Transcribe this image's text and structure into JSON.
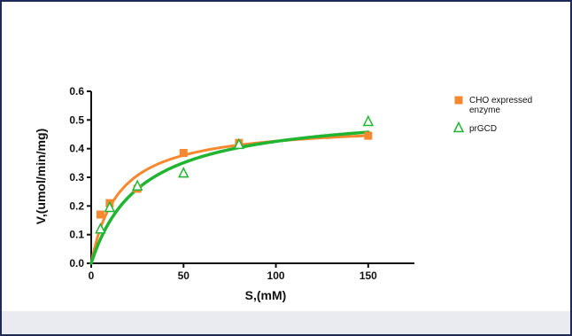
{
  "colors": {
    "frame_border": "#1d2a5a",
    "axis": "#111111",
    "orange": "#f7882f",
    "green": "#1fb531",
    "background_strip": "#e9ebf0"
  },
  "chart_data": {
    "type": "scatter",
    "title": "",
    "xlabel": "S,(mM)",
    "ylabel": "V,(umol/min/mg)",
    "xlim": [
      0,
      175
    ],
    "ylim": [
      0,
      0.6
    ],
    "xticks": [
      0,
      50,
      100,
      150
    ],
    "yticks": [
      0.0,
      0.1,
      0.2,
      0.3,
      0.4,
      0.5,
      0.6
    ],
    "grid": false,
    "legend_position": "right",
    "series": [
      {
        "name": "CHO expressed enzyme",
        "marker": "filled-square",
        "color": "#f7882f",
        "x": [
          5,
          10,
          25,
          50,
          80,
          150
        ],
        "y": [
          0.17,
          0.21,
          0.26,
          0.385,
          0.42,
          0.445
        ],
        "fit": {
          "model": "michaelis-menten",
          "vmax": 0.49,
          "km": 15
        }
      },
      {
        "name": "prGCD",
        "marker": "open-triangle",
        "color": "#1fb531",
        "x": [
          5,
          10,
          25,
          50,
          80,
          150
        ],
        "y": [
          0.12,
          0.195,
          0.27,
          0.315,
          0.415,
          0.495
        ],
        "fit": {
          "model": "michaelis-menten",
          "vmax": 0.54,
          "km": 27
        }
      }
    ]
  }
}
